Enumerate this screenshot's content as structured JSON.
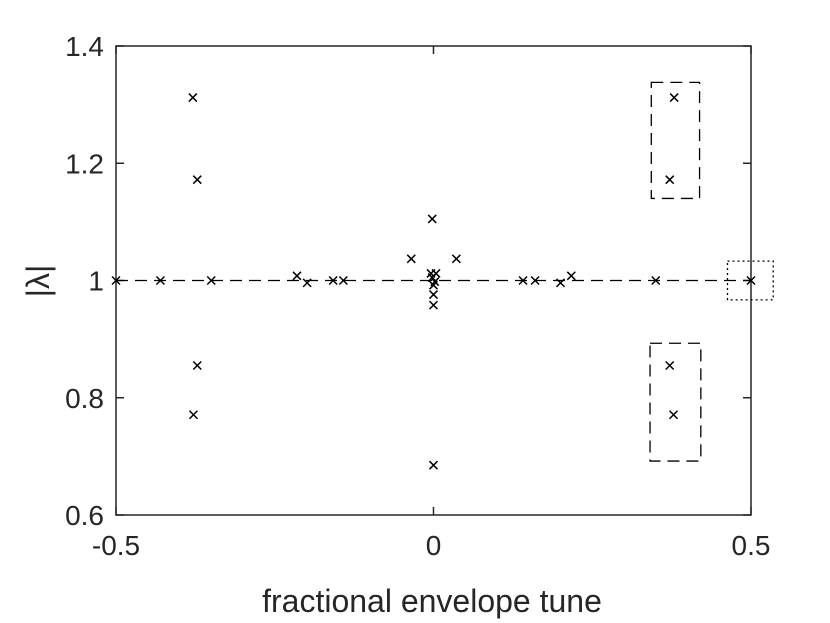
{
  "chart_data": {
    "type": "scatter",
    "xlabel": "fractional envelope tune",
    "ylabel": "|λ|",
    "xlim": [
      -0.5,
      0.5
    ],
    "ylim": [
      0.6,
      1.4
    ],
    "x_ticks": [
      -0.5,
      0,
      0.5
    ],
    "x_tick_labels": [
      "-0.5",
      "0",
      "0.5"
    ],
    "y_ticks": [
      0.6,
      0.8,
      1,
      1.2,
      1.4
    ],
    "y_tick_labels": [
      "0.6",
      "0.8",
      "1",
      "1.2",
      "1.4"
    ],
    "grid": false,
    "marker": "x",
    "marker_color": "#000000",
    "axes_color": "#262626",
    "points": [
      {
        "x": -0.5,
        "y": 1.0
      },
      {
        "x": -0.379,
        "y": 1.312
      },
      {
        "x": -0.372,
        "y": 1.172
      },
      {
        "x": -0.372,
        "y": 0.855
      },
      {
        "x": -0.378,
        "y": 0.771
      },
      {
        "x": -0.35,
        "y": 1.0
      },
      {
        "x": -0.43,
        "y": 1.0
      },
      {
        "x": -0.215,
        "y": 1.008
      },
      {
        "x": -0.199,
        "y": 0.996
      },
      {
        "x": -0.158,
        "y": 1.0
      },
      {
        "x": -0.142,
        "y": 1.0
      },
      {
        "x": -0.035,
        "y": 1.037
      },
      {
        "x": 0.036,
        "y": 1.037
      },
      {
        "x": -0.002,
        "y": 1.105
      },
      {
        "x": -0.004,
        "y": 1.012
      },
      {
        "x": 0.004,
        "y": 1.012
      },
      {
        "x": -0.002,
        "y": 1.005
      },
      {
        "x": 0.002,
        "y": 0.998
      },
      {
        "x": 0.0,
        "y": 0.992
      },
      {
        "x": 0.0,
        "y": 0.976
      },
      {
        "x": 0.0,
        "y": 0.958
      },
      {
        "x": 0.0,
        "y": 0.685
      },
      {
        "x": 0.141,
        "y": 1.0
      },
      {
        "x": 0.16,
        "y": 1.0
      },
      {
        "x": 0.2,
        "y": 0.996
      },
      {
        "x": 0.217,
        "y": 1.008
      },
      {
        "x": 0.35,
        "y": 1.0
      },
      {
        "x": 0.379,
        "y": 1.312
      },
      {
        "x": 0.372,
        "y": 1.172
      },
      {
        "x": 0.372,
        "y": 0.855
      },
      {
        "x": 0.378,
        "y": 0.771
      },
      {
        "x": 0.5,
        "y": 1.0
      }
    ],
    "reference_line": {
      "y": 1.0,
      "style": "dashed"
    },
    "annotation_boxes": [
      {
        "x0": 0.343,
        "x1": 0.419,
        "y0": 1.14,
        "y1": 1.338,
        "style": "dashed"
      },
      {
        "x0": 0.341,
        "x1": 0.421,
        "y0": 0.692,
        "y1": 0.893,
        "style": "dashed"
      },
      {
        "x0": 0.463,
        "x1": 0.535,
        "y0": 0.967,
        "y1": 1.033,
        "style": "dotted"
      }
    ]
  }
}
